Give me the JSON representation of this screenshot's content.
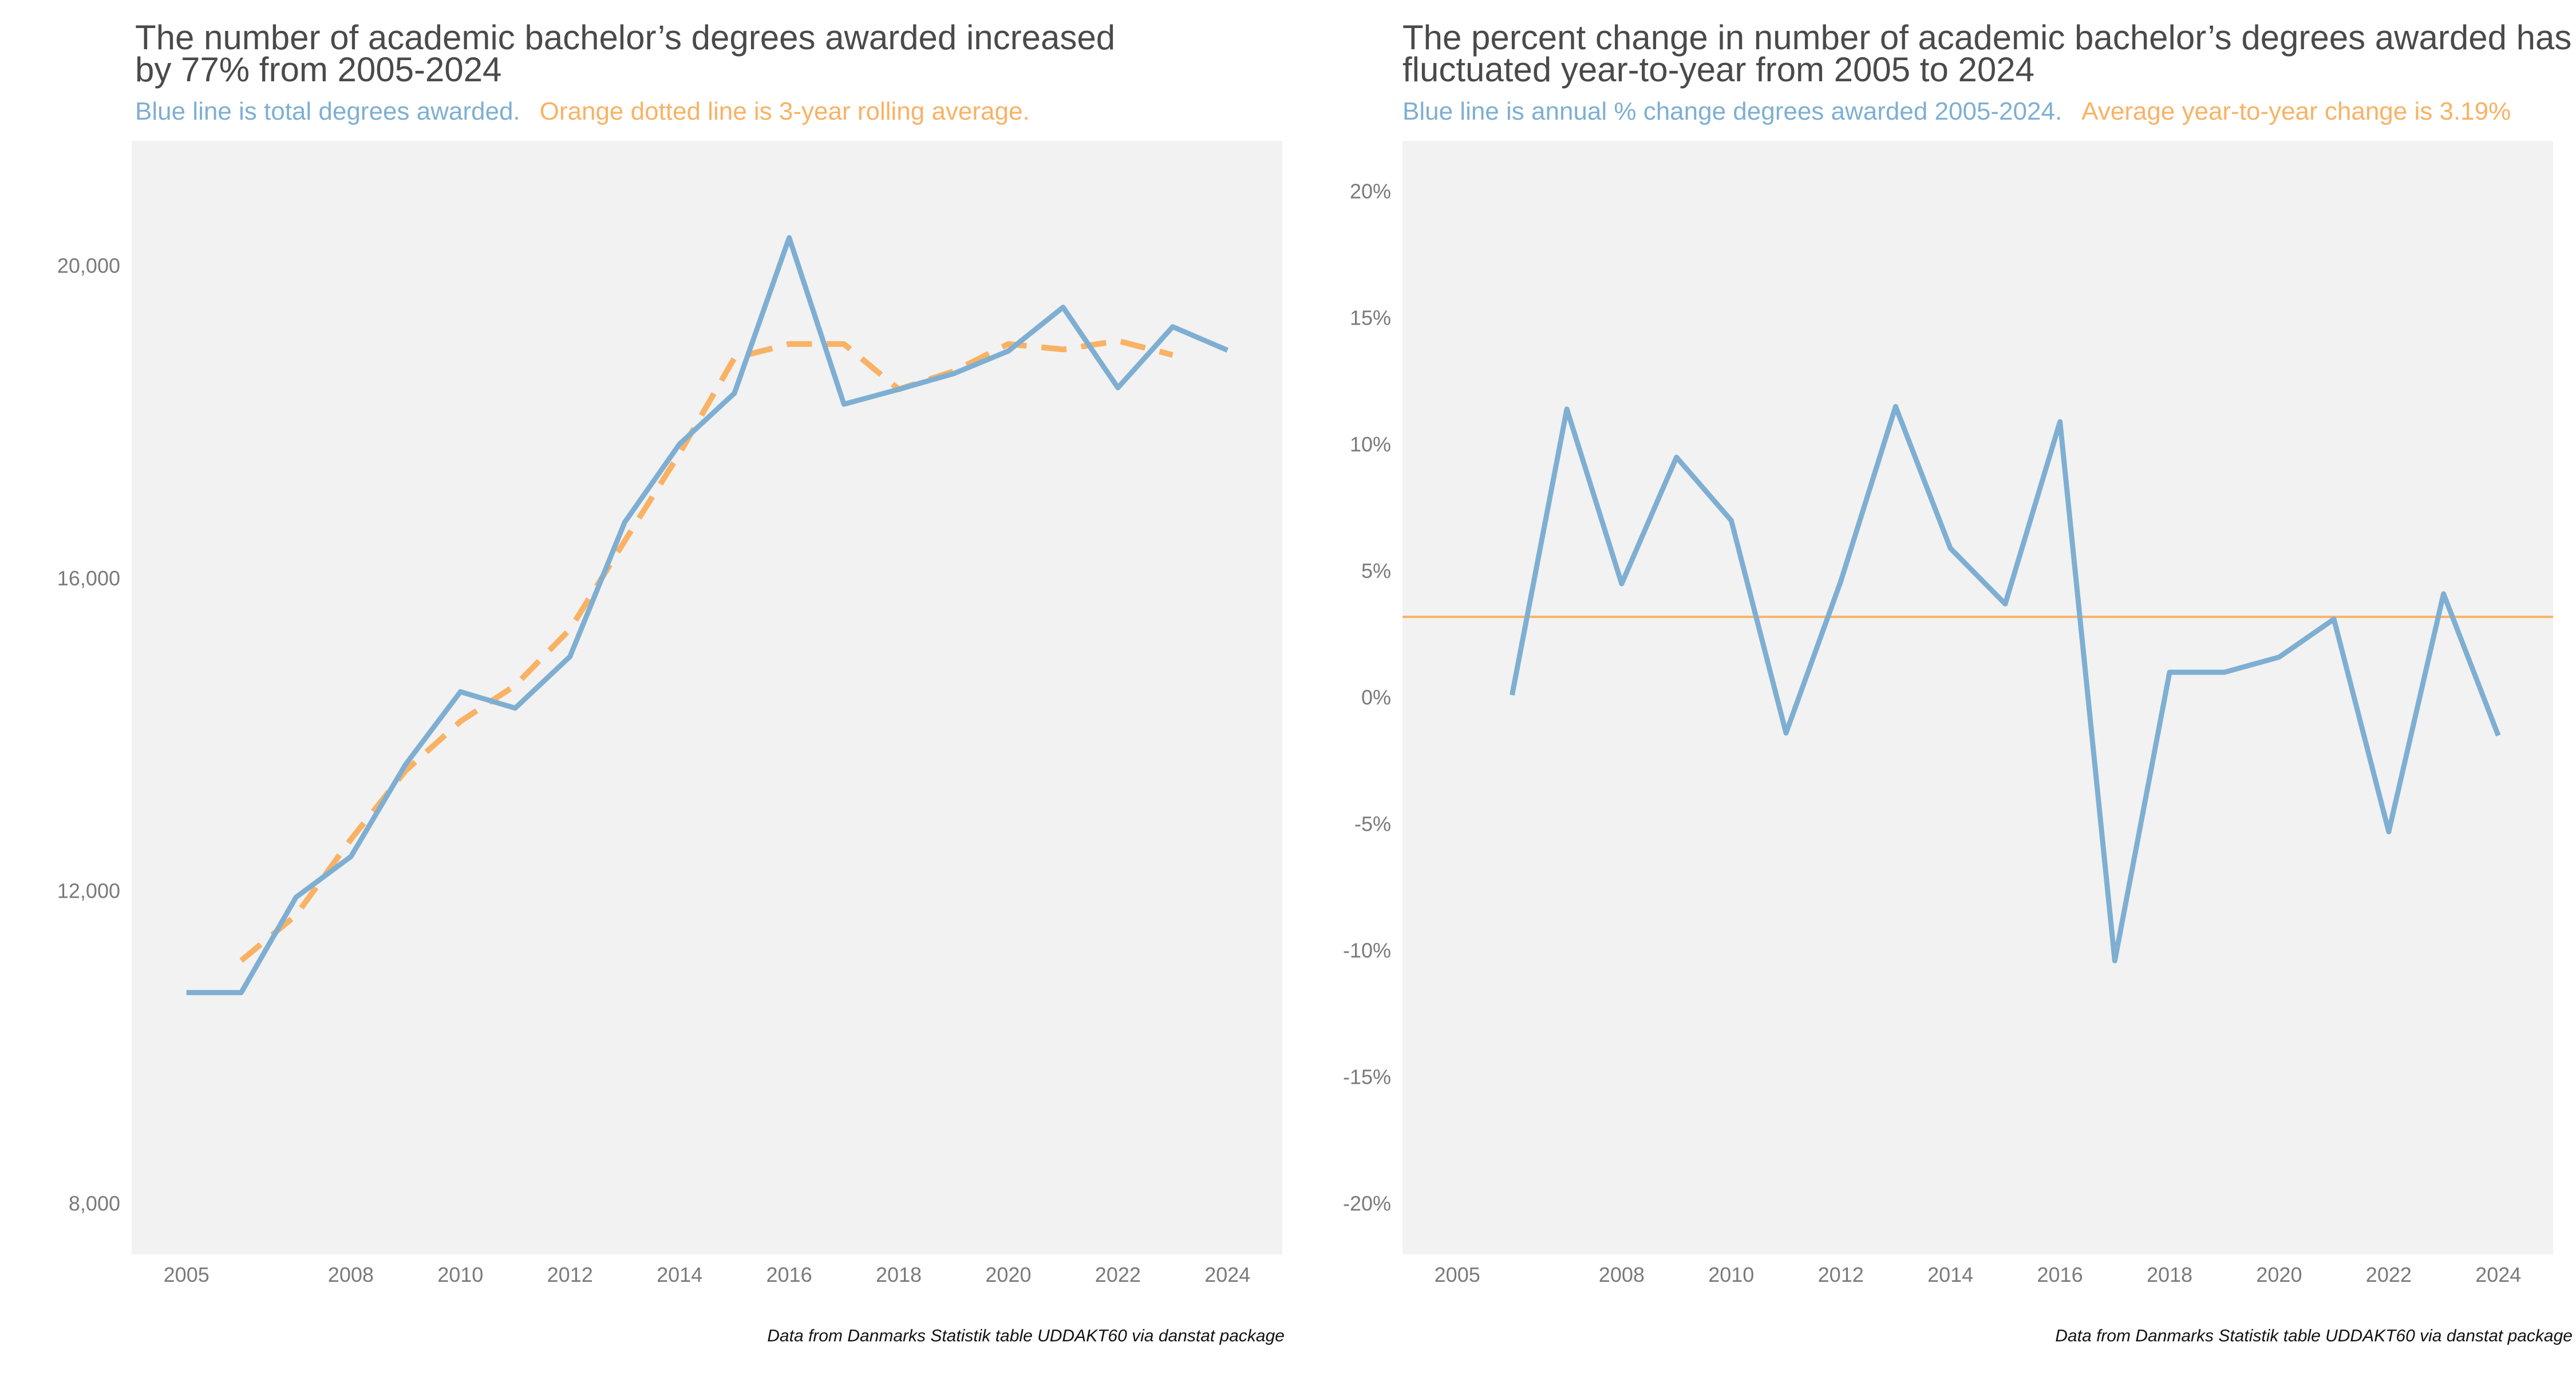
{
  "chart_data": [
    {
      "type": "line",
      "title_line1": "The number of academic bachelor’s degrees awarded increased",
      "title_line2": "by 77% from 2005-2024",
      "subtitle_blue": "Blue line is total degrees awarded.",
      "subtitle_orange": "Orange dotted line is 3-year rolling average.",
      "caption": "Data from Danmarks Statistik table UDDAKT60 via danstat package",
      "xlim": [
        2004,
        2025
      ],
      "ylim": [
        7350,
        21600
      ],
      "x_ticks": [
        2005,
        2008,
        2010,
        2012,
        2014,
        2016,
        2018,
        2020,
        2022,
        2024
      ],
      "x_tick_labels": [
        "2005",
        "2008",
        "2010",
        "2012",
        "2014",
        "2016",
        "2018",
        "2020",
        "2022",
        "2024"
      ],
      "y_ticks": [
        8000,
        12000,
        16000,
        20000
      ],
      "y_tick_labels": [
        "8,000",
        "12,000",
        "16,000",
        "20,000"
      ],
      "grid": false,
      "x": [
        2005,
        2006,
        2007,
        2008,
        2009,
        2010,
        2011,
        2012,
        2013,
        2014,
        2015,
        2016,
        2017,
        2018,
        2019,
        2020,
        2021,
        2022,
        2023,
        2024
      ],
      "series": [
        {
          "values": [
            10700,
            10700,
            11920,
            12440,
            13620,
            14550,
            14340,
            15000,
            16720,
            17720,
            18370,
            20360,
            18230,
            18420,
            18620,
            18910,
            19470,
            18440,
            19220,
            18920
          ],
          "color": "#7eafd2",
          "style": "solid"
        },
        {
          "values": [
            null,
            11110,
            11690,
            12660,
            13540,
            14170,
            14630,
            15350,
            16480,
            17600,
            18820,
            19000,
            19000,
            18420,
            18650,
            19000,
            18930,
            19040,
            18860,
            null
          ],
          "color": "#f9b264",
          "style": "dashed"
        }
      ]
    },
    {
      "type": "line",
      "title_line1": "The percent change in number of academic bachelor’s degrees awarded has",
      "title_line2": "fluctuated year-to-year from 2005 to 2024",
      "subtitle_blue": "Blue line is annual % change degrees awarded 2005-2024.",
      "subtitle_orange": "Average year-to-year change is 3.19%",
      "caption": "Data from Danmarks Statistik table UDDAKT60 via danstat package",
      "xlim": [
        2004,
        2025
      ],
      "ylim": [
        -22,
        22
      ],
      "x_ticks": [
        2005,
        2008,
        2010,
        2012,
        2014,
        2016,
        2018,
        2020,
        2022,
        2024
      ],
      "x_tick_labels": [
        "2005",
        "2008",
        "2010",
        "2012",
        "2014",
        "2016",
        "2018",
        "2020",
        "2022",
        "2024"
      ],
      "y_ticks": [
        -20,
        -15,
        -10,
        -5,
        0,
        5,
        10,
        15,
        20
      ],
      "y_tick_labels": [
        "-20%",
        "-15%",
        "-10%",
        "-5%",
        "0%",
        "5%",
        "10%",
        "15%",
        "20%"
      ],
      "grid": false,
      "x": [
        2006,
        2007,
        2008,
        2009,
        2010,
        2011,
        2012,
        2013,
        2014,
        2015,
        2016,
        2017,
        2018,
        2019,
        2020,
        2021,
        2022,
        2023,
        2024
      ],
      "series": [
        {
          "values": [
            0.1,
            11.4,
            4.5,
            9.5,
            7.0,
            -1.4,
            4.6,
            11.5,
            5.9,
            3.7,
            10.9,
            -10.4,
            1.0,
            1.0,
            1.6,
            3.1,
            -5.3,
            4.1,
            -1.5
          ],
          "color": "#7eafd2",
          "style": "solid"
        }
      ],
      "reference_line": {
        "y": 3.19,
        "color": "#f9b264"
      }
    }
  ]
}
